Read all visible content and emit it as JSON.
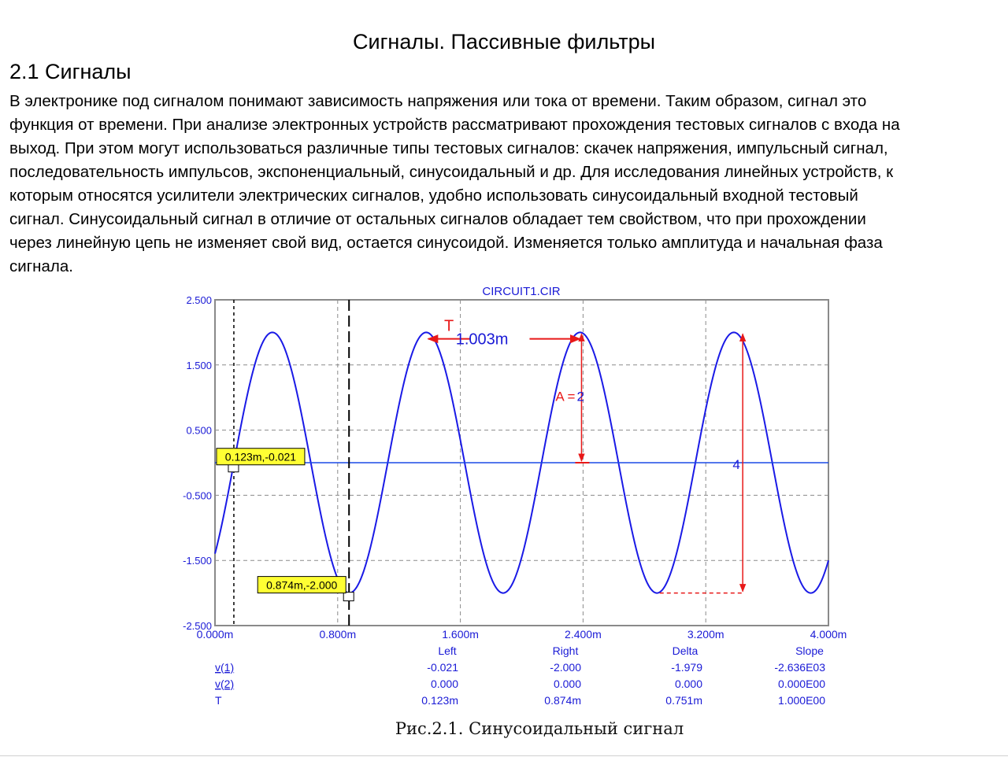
{
  "document": {
    "title": "Сигналы. Пассивные фильтры",
    "section_heading": "2.1 Сигналы",
    "paragraph_lines": [
      "В электронике под сигналом понимают зависимость напряжения или тока от времени. Таким образом, сигнал это",
      "функция от времени. При анализе электронных устройств рассматривают прохождения тестовых сигналов с входа на",
      "выход. При этом могут использоваться различные типы тестовых сигналов: скачек напряжения, импульсный сигнал,",
      "последовательность импульсов, экспоненциальный, синусоидальный и др. Для исследования линейных устройств, к",
      "которым относятся усилители электрических сигналов, удобно использовать синусоидальный входной тестовый",
      "сигнал. Синусоидальный сигнал в отличие от остальных сигналов обладает тем свойством, что при прохождении",
      "через линейную цепь не изменяет свой вид, остается синусоидой. Изменяется только амплитуда и начальная фаза",
      "сигнала."
    ],
    "caption": "Рис.2.1. Синусоидальный сигнал"
  },
  "chart_data": {
    "type": "line",
    "title": "CIRCUIT1.CIR",
    "xlim": [
      0,
      4.0
    ],
    "ylim": [
      -2.5,
      2.5
    ],
    "x_unit_scale": "ms",
    "x_ticks": [
      0,
      0.8,
      1.6,
      2.4,
      3.2,
      4.0
    ],
    "x_tick_labels": [
      "0.000m",
      "0.800m",
      "1.600m",
      "2.400m",
      "3.200m",
      "4.000m"
    ],
    "y_ticks": [
      2.5,
      1.5,
      0.5,
      -0.5,
      -1.5,
      -2.5
    ],
    "y_tick_labels": [
      "2.500",
      "1.500",
      "0.500",
      "-0.500",
      "-1.500",
      "-2.500"
    ],
    "grid": true,
    "series": [
      {
        "name": "v(1)",
        "kind": "sine",
        "amplitude": 2.0,
        "period": 1.003,
        "zero_crossing": 0.1234,
        "color": "#1a1ae6"
      },
      {
        "name": "v(2)",
        "kind": "constant",
        "value": 0.0,
        "color": "#1a4ae6"
      }
    ],
    "cursors": [
      {
        "name": "left",
        "x": 0.123,
        "y": -0.021,
        "label": "0.123m,-0.021"
      },
      {
        "name": "right",
        "x": 0.874,
        "y": -2.0,
        "label": "0.874m,-2.000"
      }
    ],
    "annotations": {
      "period_symbol": "T",
      "period_value": "1.003m",
      "period_x_start": 1.38,
      "period_x_end": 2.39,
      "period_y": 1.9,
      "amplitude_label": "A =",
      "amplitude_value": "2",
      "amplitude_x": 2.39,
      "amplitude_top": 2.0,
      "amplitude_bottom": 0.0,
      "peak_to_peak_value": "4",
      "peak_to_peak_x": 3.4,
      "peak_to_peak_top": 2.0,
      "peak_to_peak_bottom": -2.0,
      "dashed_ref_from_x": 2.9,
      "annotation_color": "#e81818"
    },
    "readout": {
      "headers": [
        "Left",
        "Right",
        "Delta",
        "Slope"
      ],
      "rows": [
        {
          "label": "v(1)",
          "values": [
            "-0.021",
            "-2.000",
            "-1.979",
            "-2.636E03"
          ]
        },
        {
          "label": "v(2)",
          "values": [
            "0.000",
            "0.000",
            "0.000",
            "0.000E00"
          ]
        },
        {
          "label": "T",
          "values": [
            "0.123m",
            "0.874m",
            "0.751m",
            "1.000E00"
          ]
        }
      ]
    },
    "colors": {
      "frame": "#8a8a8a",
      "grid": "#8a8a8a",
      "text": "#1a1ad6",
      "label_box": "#ffff33"
    }
  }
}
